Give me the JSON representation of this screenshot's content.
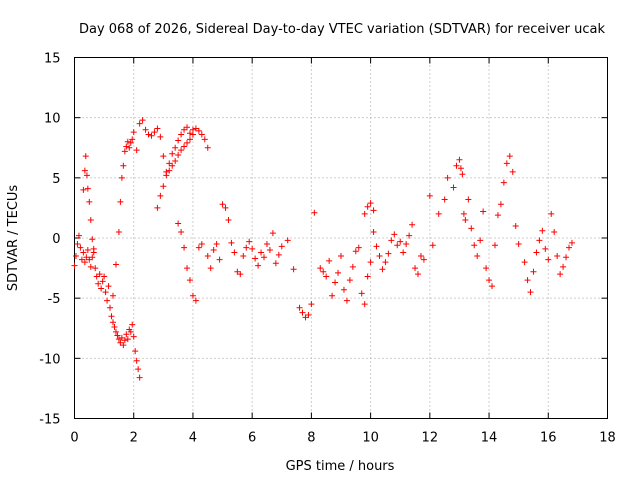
{
  "chart_data": {
    "type": "scatter",
    "title": "Day 068 of 2026, Sidereal Day-to-day VTEC variation (SDTVAR) for receiver ucak",
    "xlabel": "GPS time / hours",
    "ylabel": "SDTVAR / TECUs",
    "xlim": [
      0,
      18
    ],
    "ylim": [
      -15,
      15
    ],
    "xticks": [
      0,
      2,
      4,
      6,
      8,
      10,
      12,
      14,
      16,
      18
    ],
    "yticks": [
      -15,
      -10,
      -5,
      0,
      5,
      10,
      15
    ],
    "grid": true,
    "marker": "+",
    "color": "#ff0000",
    "series": [
      {
        "name": "SDTVAR",
        "x": [
          0.0,
          0.05,
          0.1,
          0.15,
          0.2,
          0.25,
          0.3,
          0.35,
          0.4,
          0.45,
          0.5,
          0.55,
          0.6,
          0.65,
          0.7,
          0.75,
          0.8,
          0.85,
          0.9,
          0.95,
          1.0,
          1.05,
          1.1,
          1.15,
          1.2,
          1.25,
          1.3,
          1.35,
          1.4,
          1.45,
          1.5,
          1.55,
          1.6,
          1.65,
          1.7,
          1.75,
          1.8,
          1.85,
          1.9,
          1.95,
          2.0,
          2.05,
          2.1,
          2.15,
          2.2,
          0.3,
          0.35,
          0.38,
          0.42,
          0.45,
          0.5,
          0.55,
          0.6,
          0.65,
          1.3,
          1.4,
          1.5,
          1.55,
          1.6,
          1.65,
          1.7,
          1.75,
          1.8,
          1.85,
          1.9,
          1.95,
          2.0,
          2.1,
          2.2,
          2.3,
          2.4,
          2.5,
          2.6,
          2.7,
          2.8,
          2.9,
          3.0,
          3.1,
          3.2,
          3.3,
          3.4,
          3.5,
          3.6,
          3.7,
          3.8,
          3.9,
          4.0,
          4.1,
          4.2,
          4.3,
          4.4,
          4.5,
          2.8,
          2.9,
          3.0,
          3.1,
          3.2,
          3.3,
          3.4,
          3.5,
          3.6,
          3.7,
          3.8,
          3.9,
          4.0,
          3.5,
          3.6,
          3.7,
          3.8,
          3.9,
          4.0,
          4.1,
          4.2,
          4.3,
          4.5,
          4.6,
          4.7,
          4.8,
          4.9,
          5.0,
          5.1,
          5.2,
          5.3,
          5.4,
          5.5,
          5.6,
          5.7,
          5.8,
          5.9,
          6.0,
          6.1,
          6.2,
          6.3,
          6.4,
          6.5,
          6.6,
          6.7,
          6.8,
          6.9,
          7.0,
          7.2,
          7.4,
          7.6,
          7.7,
          7.8,
          7.9,
          8.0,
          8.1,
          8.3,
          8.4,
          8.5,
          8.6,
          8.7,
          8.8,
          8.9,
          9.0,
          9.1,
          9.2,
          9.3,
          9.4,
          9.5,
          9.6,
          9.7,
          9.8,
          9.9,
          10.0,
          10.1,
          10.2,
          10.3,
          10.4,
          10.5,
          10.6,
          10.7,
          10.8,
          10.9,
          11.0,
          11.1,
          11.2,
          11.3,
          11.4,
          11.5,
          11.6,
          11.7,
          11.8,
          9.8,
          9.9,
          10.0,
          10.1,
          12.0,
          12.1,
          12.3,
          12.5,
          12.6,
          12.8,
          12.9,
          13.0,
          13.05,
          13.1,
          13.15,
          13.2,
          13.3,
          13.4,
          13.5,
          13.6,
          13.7,
          13.8,
          13.9,
          14.0,
          14.1,
          14.2,
          14.3,
          14.4,
          14.5,
          14.6,
          14.7,
          14.8,
          14.9,
          15.0,
          15.2,
          15.3,
          15.4,
          15.5,
          15.6,
          15.7,
          15.8,
          15.9,
          16.0,
          16.1,
          16.2,
          16.3,
          16.4,
          16.5,
          16.6,
          16.7,
          16.8
        ],
        "y": [
          -2.3,
          -1.5,
          -0.5,
          0.2,
          -0.8,
          -1.8,
          -1.2,
          -2.0,
          -1.6,
          -1.0,
          -1.8,
          -2.4,
          -1.6,
          -0.9,
          -2.5,
          -3.2,
          -3.8,
          -3.0,
          -4.2,
          -3.6,
          -3.2,
          -4.5,
          -5.2,
          -4.0,
          -5.8,
          -6.5,
          -7.0,
          -7.4,
          -7.8,
          -8.1,
          -8.4,
          -8.7,
          -8.3,
          -8.9,
          -8.5,
          -8.0,
          -8.4,
          -7.6,
          -7.8,
          -7.2,
          -8.2,
          -9.4,
          -10.2,
          -10.9,
          -11.6,
          4.0,
          5.6,
          6.8,
          5.2,
          4.1,
          3.0,
          1.5,
          -0.1,
          -1.2,
          -4.8,
          -2.2,
          0.5,
          3.0,
          5.0,
          6.0,
          7.2,
          7.6,
          8.0,
          7.5,
          7.9,
          8.2,
          8.8,
          7.3,
          9.5,
          9.8,
          9.0,
          8.6,
          8.5,
          8.8,
          9.1,
          8.4,
          6.8,
          5.5,
          6.2,
          7.0,
          7.5,
          8.1,
          8.6,
          9.0,
          9.2,
          8.7,
          9.0,
          9.1,
          8.9,
          8.6,
          8.2,
          7.5,
          2.5,
          3.5,
          4.3,
          5.2,
          5.6,
          6.0,
          6.4,
          6.9,
          7.3,
          7.6,
          7.9,
          8.2,
          8.6,
          1.2,
          0.5,
          -0.8,
          -2.5,
          -3.5,
          -4.8,
          -5.2,
          -0.8,
          -0.5,
          -1.5,
          -2.5,
          -1.0,
          -0.5,
          -1.8,
          2.8,
          2.5,
          1.5,
          -0.4,
          -1.2,
          -2.8,
          -3.0,
          -1.5,
          -0.8,
          -0.3,
          -0.9,
          -1.7,
          -2.3,
          -1.2,
          -1.6,
          -0.5,
          -1.0,
          0.4,
          -2.1,
          -1.4,
          -0.7,
          -0.2,
          -2.6,
          -5.8,
          -6.2,
          -6.6,
          -6.4,
          -5.5,
          2.1,
          -2.5,
          -2.8,
          -3.2,
          -1.9,
          -4.8,
          -3.7,
          -2.9,
          -1.5,
          -4.3,
          -5.2,
          -3.5,
          -2.4,
          -1.1,
          -0.8,
          -4.6,
          -5.5,
          -3.2,
          -2.0,
          0.5,
          -0.7,
          -1.5,
          -2.6,
          -2.0,
          -1.3,
          -0.2,
          0.3,
          -0.6,
          -0.3,
          -1.2,
          -0.5,
          0.2,
          1.1,
          -2.5,
          -3.0,
          -1.5,
          -1.8,
          2.0,
          2.6,
          2.9,
          2.3,
          3.5,
          -0.6,
          2.0,
          3.2,
          5.0,
          4.2,
          6.0,
          6.5,
          5.8,
          5.3,
          2.0,
          1.5,
          3.2,
          0.8,
          -0.6,
          -1.5,
          -0.2,
          2.2,
          -2.5,
          -3.5,
          -4.0,
          -0.6,
          1.9,
          2.8,
          4.6,
          6.2,
          6.8,
          5.5,
          1.0,
          -0.5,
          -2.0,
          -3.5,
          -4.5,
          -2.8,
          -1.2,
          -0.2,
          0.6,
          -0.9,
          -1.8,
          2.0,
          0.5,
          -1.5,
          -3.0,
          -2.4,
          -1.6,
          -0.8,
          -0.4
        ]
      }
    ]
  }
}
